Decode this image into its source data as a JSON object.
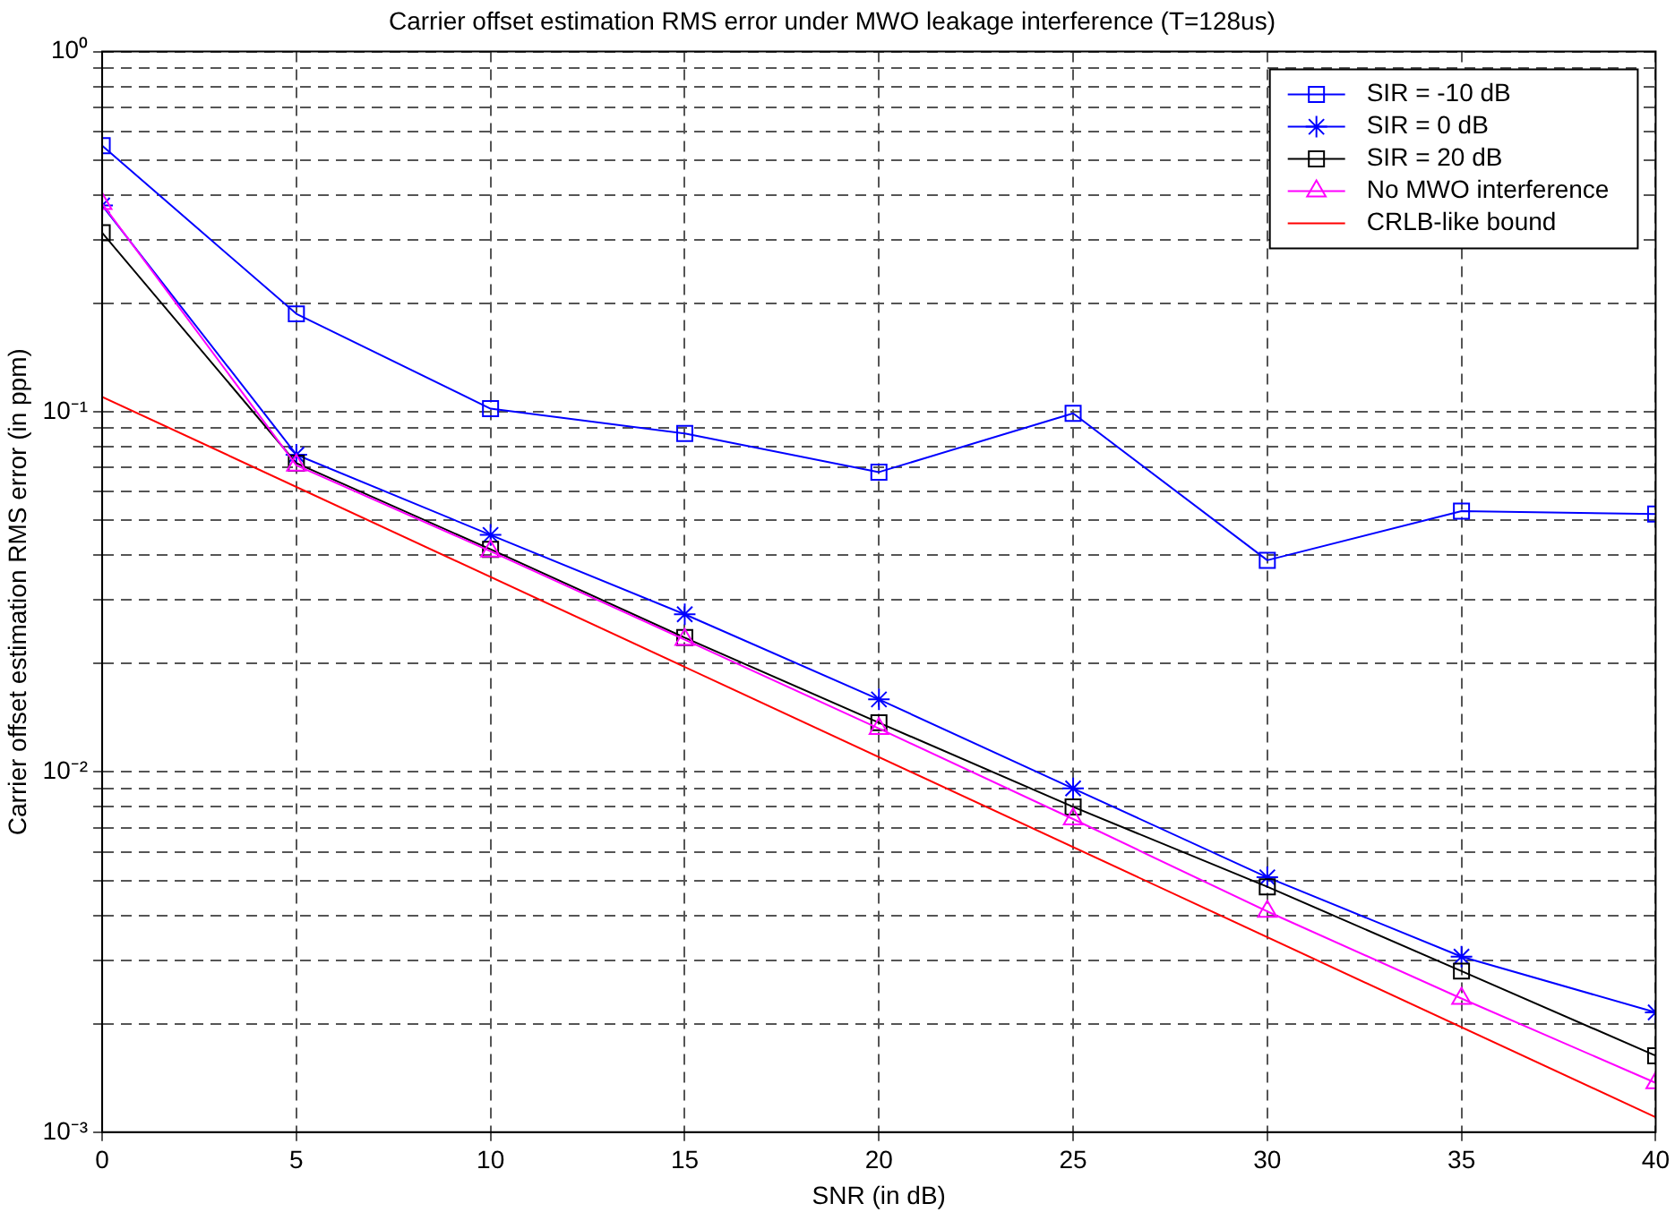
{
  "chart_data": {
    "type": "line",
    "title": "Carrier offset estimation RMS error under MWO leakage interference (T=128us)",
    "xlabel": "SNR (in dB)",
    "ylabel": "Carrier offset estimation RMS error (in ppm)",
    "x": [
      0,
      5,
      10,
      15,
      20,
      25,
      30,
      35,
      40
    ],
    "series": [
      {
        "name": "SIR = -10 dB",
        "color": "#0000ff",
        "marker": "square",
        "values": [
          0.548,
          0.187,
          0.102,
          0.087,
          0.068,
          0.099,
          0.0387,
          0.053,
          0.052
        ]
      },
      {
        "name": "SIR = 0 dB",
        "color": "#0000ff",
        "marker": "cross",
        "values": [
          0.374,
          0.076,
          0.0455,
          0.0274,
          0.0159,
          0.009,
          0.0051,
          0.00307,
          0.00215
        ]
      },
      {
        "name": "SIR = 20 dB",
        "color": "#000000",
        "marker": "square",
        "values": [
          0.314,
          0.072,
          0.0415,
          0.0236,
          0.0137,
          0.008,
          0.0048,
          0.0028,
          0.00163
        ]
      },
      {
        "name": "No MWO interference",
        "color": "#ff00ff",
        "marker": "triangle",
        "values": [
          0.378,
          0.071,
          0.041,
          0.0233,
          0.0132,
          0.0074,
          0.0041,
          0.00235,
          0.00137
        ]
      },
      {
        "name": "CRLB-like bound",
        "color": "#ff0000",
        "marker": "none",
        "x": [
          0,
          40
        ],
        "values": [
          0.11,
          0.0011
        ]
      }
    ],
    "log": "y",
    "xlim": [
      0,
      40
    ],
    "xticks": [
      0,
      5,
      10,
      15,
      20,
      25,
      30,
      35,
      40
    ],
    "ylim": [
      0.001,
      1
    ],
    "yticks": [
      {
        "value": 0.001,
        "label": "10⁻³"
      },
      {
        "value": 0.002,
        "label": null
      },
      {
        "value": 0.003,
        "label": null
      },
      {
        "value": 0.004,
        "label": null
      },
      {
        "value": 0.005,
        "label": null
      },
      {
        "value": 0.006,
        "label": null
      },
      {
        "value": 0.007,
        "label": null
      },
      {
        "value": 0.008,
        "label": null
      },
      {
        "value": 0.009,
        "label": null
      },
      {
        "value": 0.01,
        "label": "10⁻²"
      },
      {
        "value": 0.02,
        "label": null
      },
      {
        "value": 0.03,
        "label": null
      },
      {
        "value": 0.04,
        "label": null
      },
      {
        "value": 0.05,
        "label": null
      },
      {
        "value": 0.06,
        "label": null
      },
      {
        "value": 0.07,
        "label": null
      },
      {
        "value": 0.08,
        "label": null
      },
      {
        "value": 0.09,
        "label": null
      },
      {
        "value": 0.1,
        "label": "10⁻¹"
      },
      {
        "value": 0.2,
        "label": null
      },
      {
        "value": 0.3,
        "label": null
      },
      {
        "value": 0.4,
        "label": null
      },
      {
        "value": 0.5,
        "label": null
      },
      {
        "value": 0.6,
        "label": null
      },
      {
        "value": 0.7,
        "label": null
      },
      {
        "value": 0.8,
        "label": null
      },
      {
        "value": 0.9,
        "label": null
      },
      {
        "value": 1,
        "label": "10⁰"
      }
    ],
    "grid": true,
    "legend": "top right",
    "line_style": "solid"
  }
}
